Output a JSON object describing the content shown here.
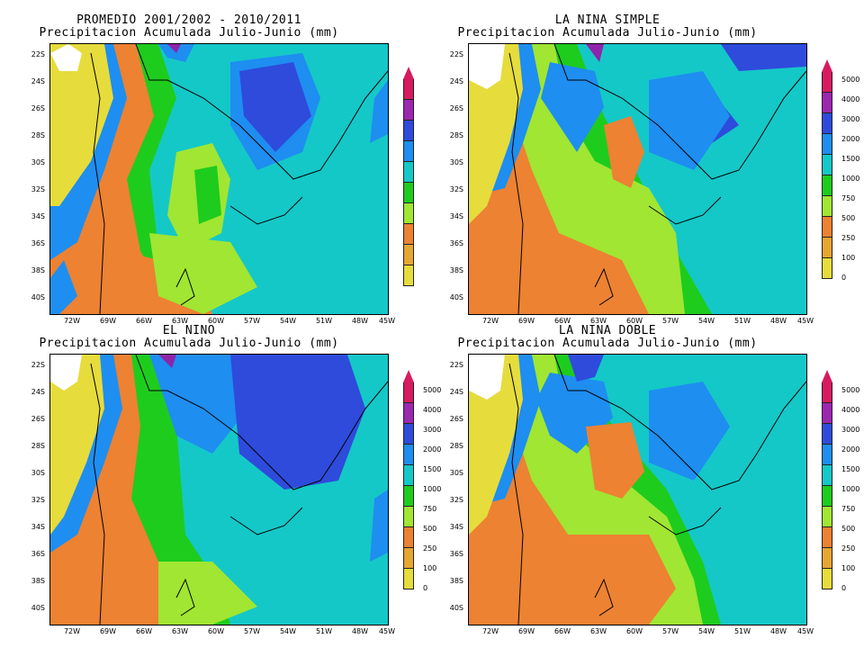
{
  "colors": {
    "c5000": "#d81b60",
    "c4000": "#9c27b0",
    "c3000": "#7b1fa2",
    "c2000": "#2e4bdc",
    "c1500": "#1e8ef0",
    "c1000": "#14c8c8",
    "c750": "#00c800",
    "c500": "#a0e632",
    "c250": "#e6a632",
    "c100": "#e68c2e",
    "c0": "#e6dc3c",
    "land_dry": "#e6dc3c",
    "orange": "#ec8232",
    "lightgreen": "#a0e632",
    "green": "#1ecc1e",
    "cyan": "#14c8c8",
    "lightblue": "#1e8ef0",
    "blue": "#2e4bdc",
    "purple": "#8e24aa",
    "white": "#ffffff",
    "yellow": "#e6dc3c"
  },
  "lat_labels": [
    "22S",
    "24S",
    "26S",
    "28S",
    "30S",
    "32S",
    "34S",
    "36S",
    "38S",
    "40S"
  ],
  "lon_labels": [
    "72W",
    "69W",
    "66W",
    "63W",
    "60W",
    "57W",
    "54W",
    "51W",
    "48W",
    "45W"
  ],
  "colorbar_labels": [
    "5000",
    "4000",
    "3000",
    "2000",
    "1500",
    "1000",
    "750",
    "500",
    "250",
    "100",
    "0"
  ],
  "panels": [
    {
      "id": "promedio",
      "title1": "PROMEDIO 2001/2002 - 2010/2011",
      "title2": "Precipitacion Acumulada Julio-Junio (mm)",
      "show_cbar_labels": false
    },
    {
      "id": "nina_simple",
      "title1": "LA NINA SIMPLE",
      "title2": "Precipitacion Acumulada Julio-Junio (mm)",
      "show_cbar_labels": true
    },
    {
      "id": "nino",
      "title1": "EL NINO",
      "title2": "Precipitacion Acumulada Julio-Junio (mm)",
      "show_cbar_labels": true
    },
    {
      "id": "nina_doble",
      "title1": "LA NINA DOBLE",
      "title2": "Precipitacion Acumulada Julio-Junio (mm)",
      "show_cbar_labels": true
    }
  ]
}
